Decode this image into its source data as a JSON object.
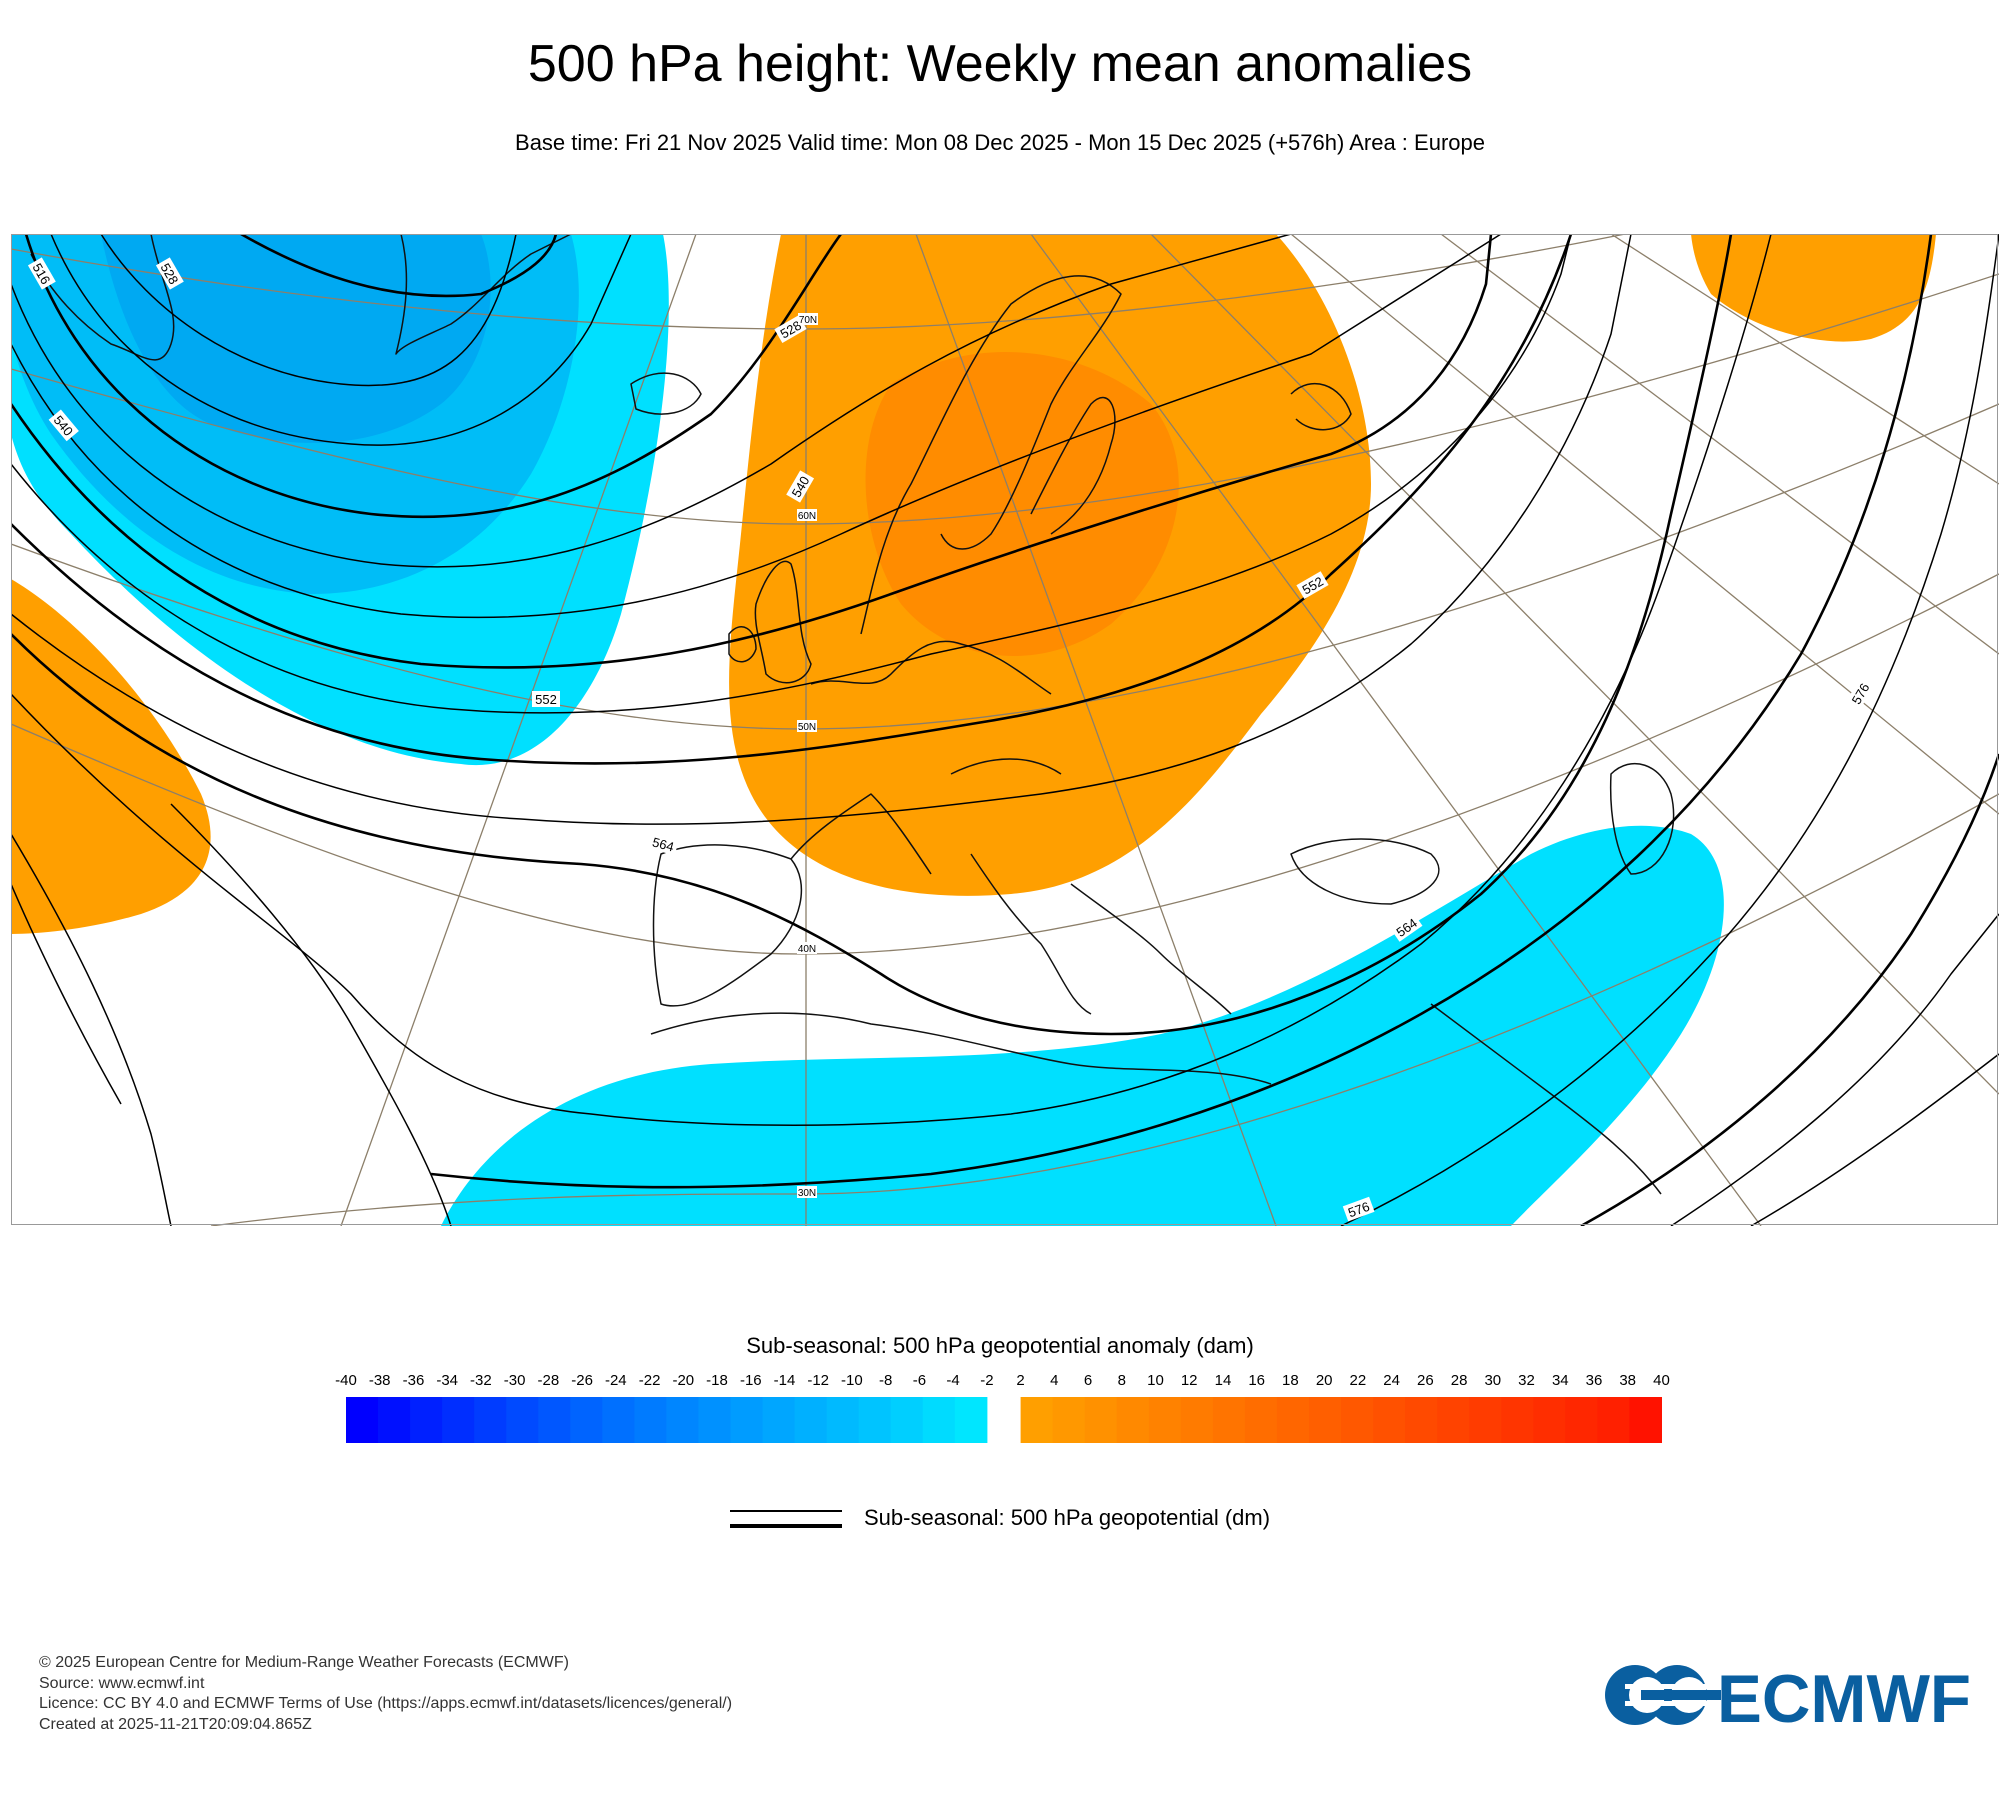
{
  "title": "500 hPa height: Weekly mean anomalies",
  "subtitle": "Base time: Fri 21 Nov 2025 Valid time: Mon 08 Dec 2025 - Mon 15 Dec 2025 (+576h) Area : Europe",
  "map": {
    "contour_labels": [
      "516",
      "528",
      "528",
      "540",
      "540",
      "552",
      "552",
      "564",
      "564",
      "576",
      "576"
    ],
    "latitude_labels": [
      "70N",
      "60N",
      "50N",
      "40N",
      "30N"
    ],
    "colors": {
      "negative": "#00bfff",
      "negative_strong": "#00a8ff",
      "positive": "#ff9f00",
      "positive_strong": "#ff8a00",
      "contour": "#000000",
      "graticule": "#8c7f6a",
      "coastline": "#111111"
    }
  },
  "colorbar": {
    "title": "Sub-seasonal: 500 hPa geopotential anomaly (dam)",
    "ticks": [
      "-40",
      "-38",
      "-36",
      "-34",
      "-32",
      "-30",
      "-28",
      "-26",
      "-24",
      "-22",
      "-20",
      "-18",
      "-16",
      "-14",
      "-12",
      "-10",
      "-8",
      "-6",
      "-4",
      "-2",
      "2",
      "4",
      "6",
      "8",
      "10",
      "12",
      "14",
      "16",
      "18",
      "20",
      "22",
      "24",
      "26",
      "28",
      "30",
      "32",
      "34",
      "36",
      "38",
      "40"
    ],
    "negative_colors": [
      "#0000ff",
      "#0010ff",
      "#0020ff",
      "#002eff",
      "#003cff",
      "#004aff",
      "#0057ff",
      "#0064ff",
      "#0070ff",
      "#007bff",
      "#0086ff",
      "#0091ff",
      "#009cff",
      "#00a6ff",
      "#00b0ff",
      "#00baff",
      "#00c4ff",
      "#00cfff",
      "#00dbff",
      "#00e6ff"
    ],
    "positive_colors": [
      "#ff9f00",
      "#ff9800",
      "#ff9100",
      "#ff8900",
      "#ff8200",
      "#ff7b00",
      "#ff7400",
      "#ff6d00",
      "#ff6600",
      "#ff5f00",
      "#ff5800",
      "#ff5100",
      "#ff4a00",
      "#ff4300",
      "#ff3c00",
      "#ff3500",
      "#ff2e00",
      "#ff2700",
      "#ff2000",
      "#ff1200"
    ]
  },
  "legend": {
    "label": "Sub-seasonal: 500 hPa geopotential (dm)"
  },
  "footer": {
    "copyright": "© 2025 European Centre for Medium-Range Weather Forecasts (ECMWF)",
    "source": "Source: www.ecmwf.int",
    "licence": "Licence: CC BY 4.0 and ECMWF Terms of Use (https://apps.ecmwf.int/datasets/licences/general/)",
    "created": "Created at 2025-11-21T20:09:04.865Z"
  },
  "logo": {
    "text": "ECMWF",
    "color": "#0a5fa0"
  }
}
